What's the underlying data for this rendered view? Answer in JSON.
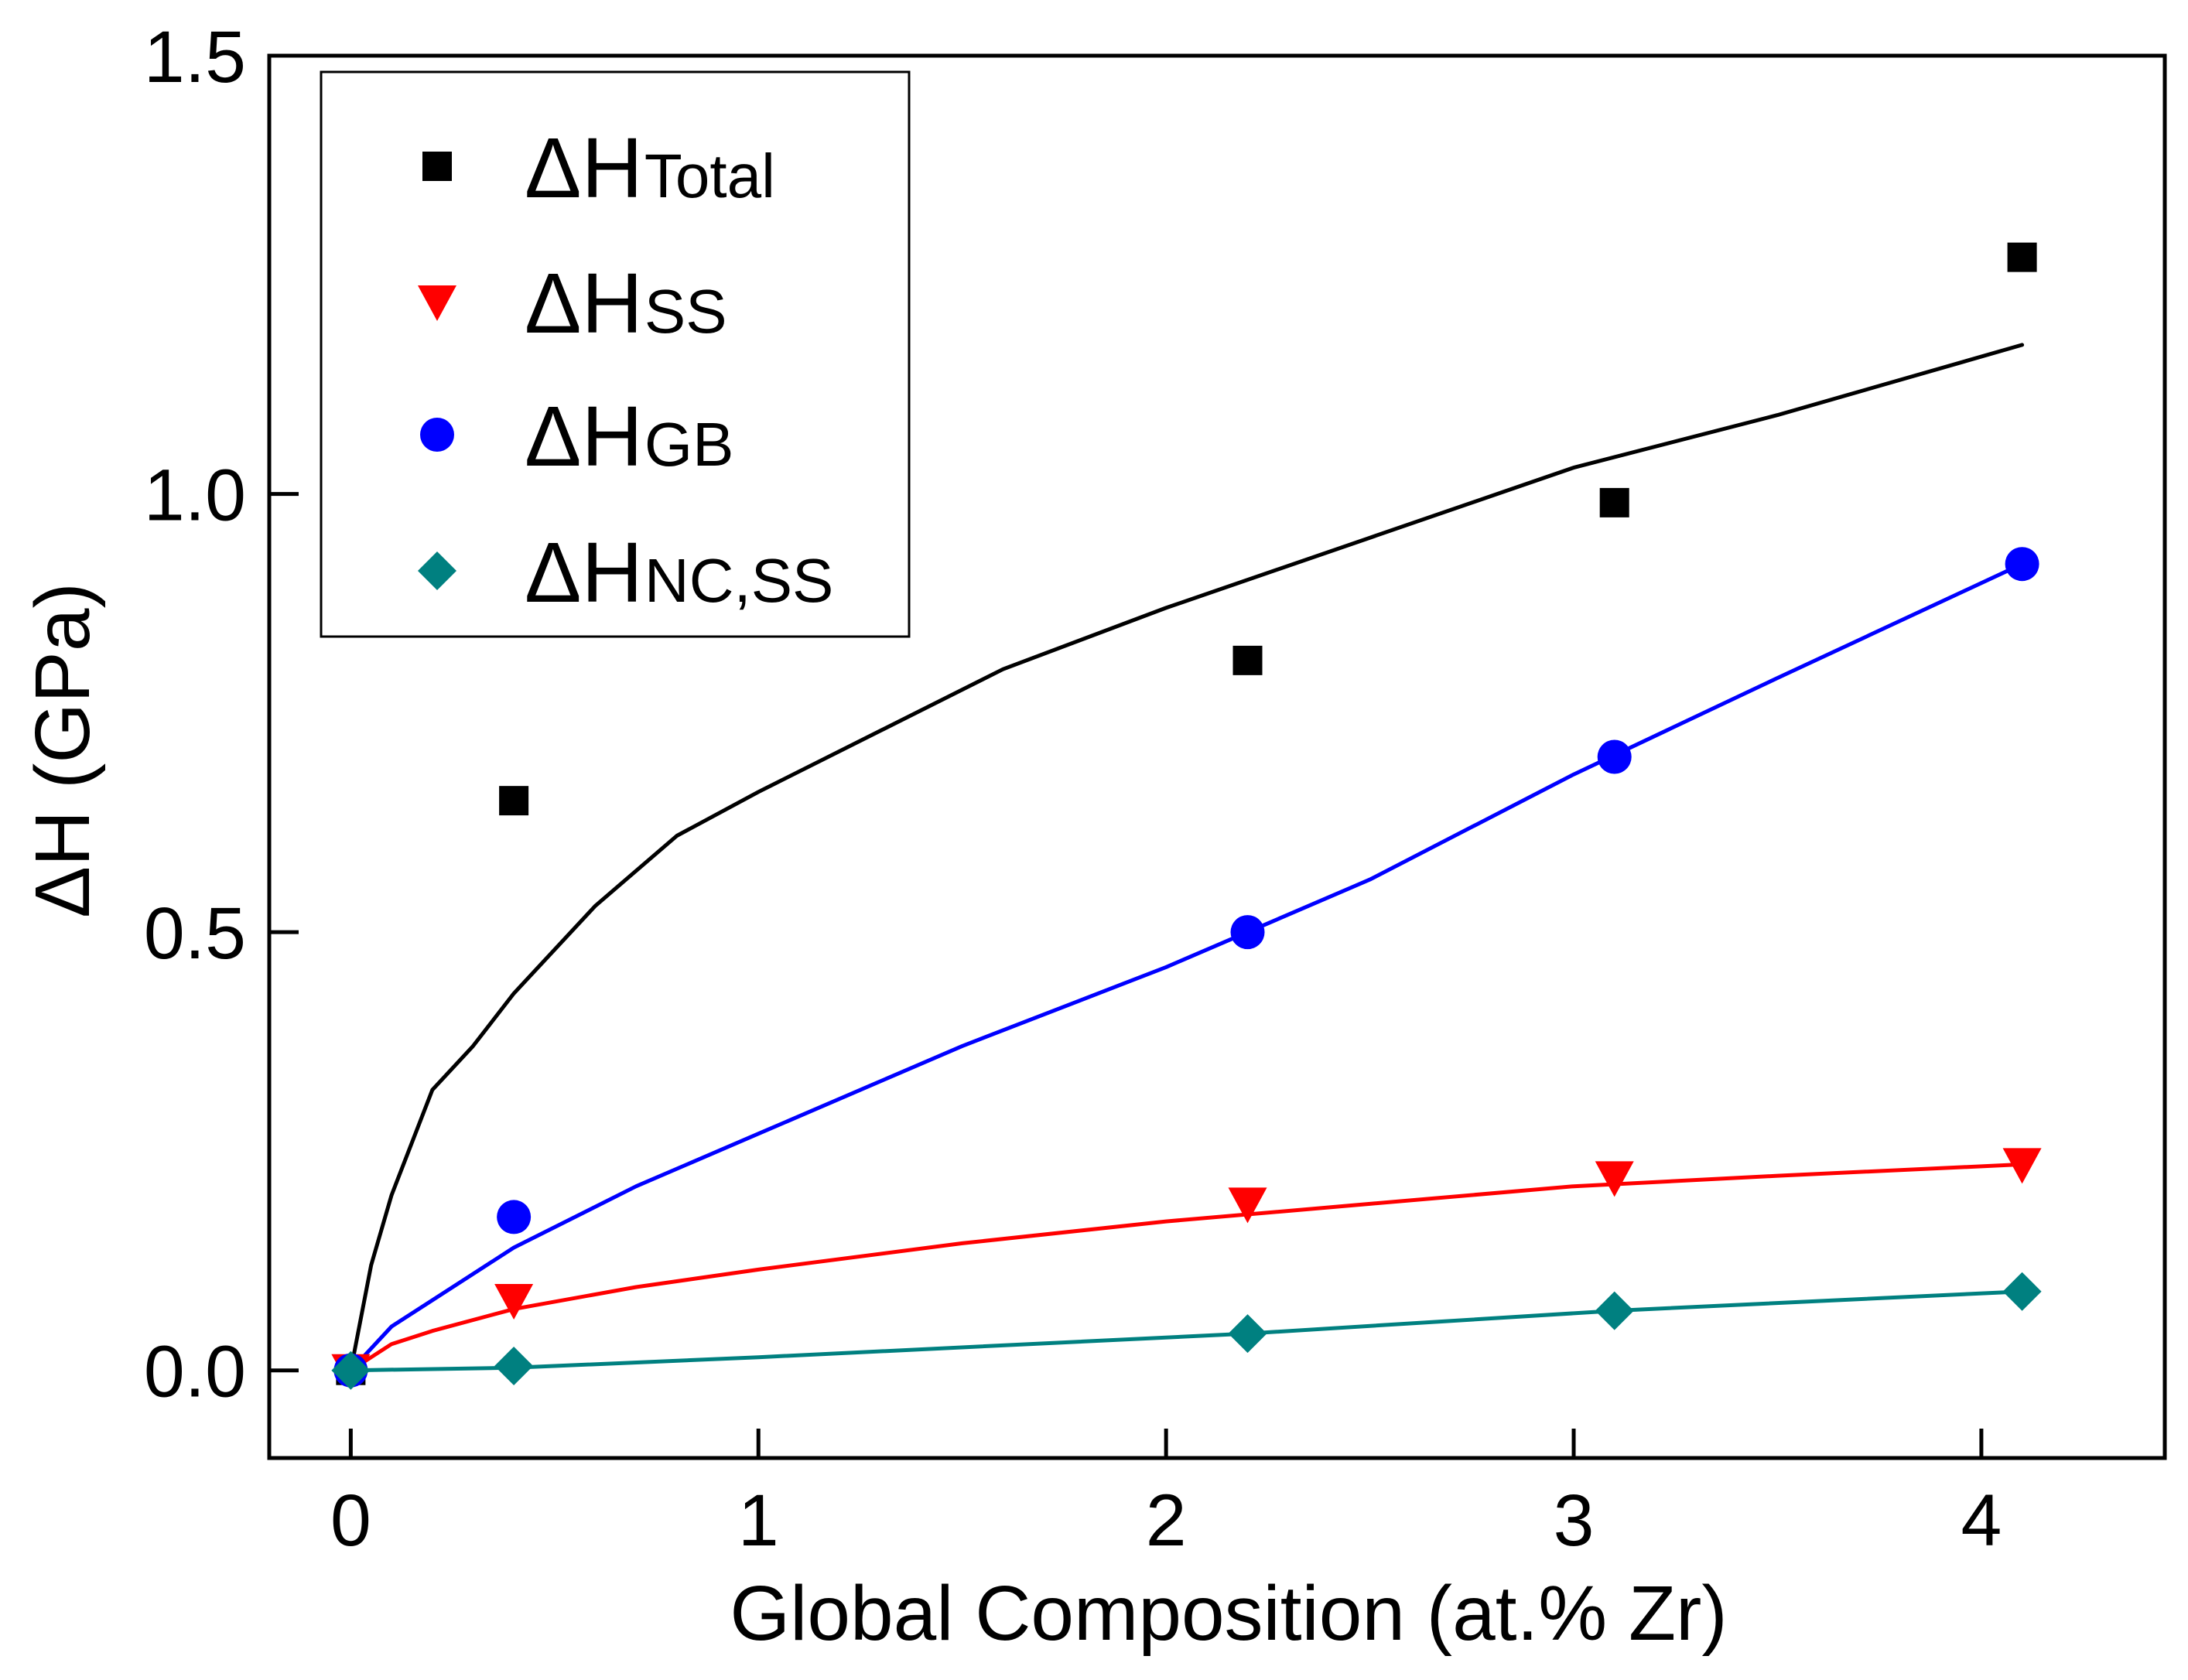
{
  "chart_data": {
    "type": "scatter",
    "title": "",
    "xlabel": "Global Composition (at.% Zr)",
    "ylabel": "ΔH (GPa)",
    "xlim": [
      -0.2,
      4.45
    ],
    "ylim": [
      -0.1,
      1.5
    ],
    "xticks": [
      0,
      1,
      2,
      3,
      4
    ],
    "xtick_labels": [
      "0",
      "1",
      "2",
      "3",
      "4"
    ],
    "yticks": [
      0.0,
      0.5,
      1.0,
      1.5
    ],
    "ytick_labels": [
      "0.0",
      "0.5",
      "1.0",
      "1.5"
    ],
    "grid": false,
    "legend_position": "top-left",
    "series": [
      {
        "name": "ΔHTotal",
        "legend_symbol": "ΔH",
        "legend_subscript": "Total",
        "marker": "square",
        "color": "#000000",
        "x": [
          0,
          0.4,
          2.2,
          3.1,
          4.1
        ],
        "y": [
          0.0,
          0.65,
          0.81,
          0.99,
          1.27
        ],
        "fit": {
          "color": "#000000",
          "x": [
            0,
            0.05,
            0.1,
            0.2,
            0.3,
            0.4,
            0.6,
            0.8,
            1.0,
            1.3,
            1.6,
            2.0,
            2.5,
            3.0,
            3.5,
            4.1
          ],
          "y": [
            0.0,
            0.12,
            0.2,
            0.32,
            0.37,
            0.43,
            0.53,
            0.61,
            0.66,
            0.73,
            0.8,
            0.87,
            0.95,
            1.03,
            1.09,
            1.17
          ]
        }
      },
      {
        "name": "ΔHSS",
        "legend_symbol": "ΔH",
        "legend_subscript": "SS",
        "marker": "triangle-down",
        "color": "#ff0000",
        "x": [
          0,
          0.4,
          2.2,
          3.1,
          4.1
        ],
        "y": [
          0.0,
          0.08,
          0.19,
          0.22,
          0.235
        ],
        "fit": {
          "color": "#ff0000",
          "x": [
            0,
            0.1,
            0.2,
            0.4,
            0.7,
            1.0,
            1.5,
            2.0,
            2.5,
            3.0,
            3.5,
            4.1
          ],
          "y": [
            0.0,
            0.03,
            0.045,
            0.07,
            0.095,
            0.115,
            0.145,
            0.17,
            0.19,
            0.21,
            0.222,
            0.235
          ]
        }
      },
      {
        "name": "ΔHGB",
        "legend_symbol": "ΔH",
        "legend_subscript": "GB",
        "marker": "circle",
        "color": "#0000ff",
        "x": [
          0,
          0.4,
          2.2,
          3.1,
          4.1
        ],
        "y": [
          0.0,
          0.175,
          0.5,
          0.7,
          0.92
        ],
        "fit": {
          "color": "#0000ff",
          "x": [
            0,
            0.1,
            0.2,
            0.4,
            0.7,
            1.0,
            1.5,
            2.0,
            2.5,
            3.0,
            3.5,
            4.1
          ],
          "y": [
            0.0,
            0.05,
            0.08,
            0.14,
            0.21,
            0.27,
            0.37,
            0.46,
            0.56,
            0.68,
            0.79,
            0.92
          ]
        }
      },
      {
        "name": "ΔHNC,SS",
        "legend_symbol": "ΔH",
        "legend_subscript": "NC,SS",
        "marker": "diamond",
        "color": "#008080",
        "x": [
          0,
          0.4,
          2.2,
          3.1,
          4.1
        ],
        "y": [
          0.0,
          0.005,
          0.042,
          0.068,
          0.09
        ],
        "fit": {
          "color": "#008080",
          "x": [
            0,
            0.4,
            1.0,
            2.2,
            3.1,
            4.1
          ],
          "y": [
            0.0,
            0.003,
            0.015,
            0.042,
            0.068,
            0.09
          ]
        }
      }
    ]
  }
}
